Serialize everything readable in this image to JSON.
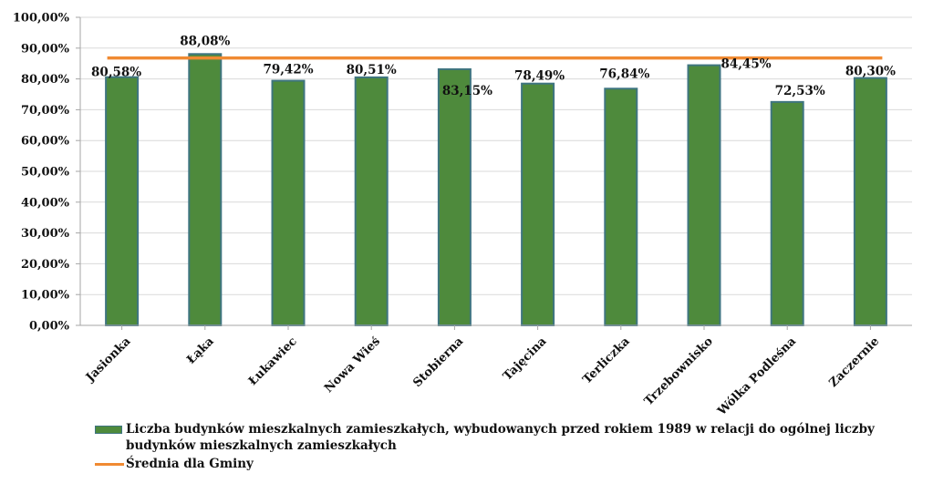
{
  "chart_data": {
    "type": "bar",
    "categories": [
      "Jasionka",
      "Łąka",
      "Łukawiec",
      "Nowa Wieś",
      "Stobierna",
      "Tajęcina",
      "Terliczka",
      "Trzebownisko",
      "Wólka Podleśna",
      "Zaczernie"
    ],
    "series": [
      {
        "name": "Liczba budynków mieszkalnych zamieszkałych, wybudowanych przed rokiem 1989 w relacji do ogólnej liczby budynków mieszkalnych zamieszkałych",
        "type": "bar",
        "values": [
          80.58,
          88.08,
          79.42,
          80.51,
          83.15,
          78.49,
          76.84,
          84.45,
          72.53,
          80.3
        ],
        "labels": [
          "80,58%",
          "88,08%",
          "79,42%",
          "80,51%",
          "83,15%",
          "78,49%",
          "76,84%",
          "84,45%",
          "72,53%",
          "80,30%"
        ],
        "color": "#4e8a3c",
        "border_color": "#3f7580"
      },
      {
        "name": "Średnia dla Gminy",
        "type": "line",
        "value": 86.8,
        "color": "#f08a32"
      }
    ],
    "ylim": [
      0,
      100
    ],
    "yticks": [
      0,
      10,
      20,
      30,
      40,
      50,
      60,
      70,
      80,
      90,
      100
    ],
    "ytick_labels": [
      "0,00%",
      "10,00%",
      "20,00%",
      "30,00%",
      "40,00%",
      "50,00%",
      "60,00%",
      "70,00%",
      "80,00%",
      "90,00%",
      "100,00%"
    ],
    "grid": true,
    "legend_position": "bottom",
    "title": "",
    "xlabel": "",
    "ylabel": ""
  }
}
